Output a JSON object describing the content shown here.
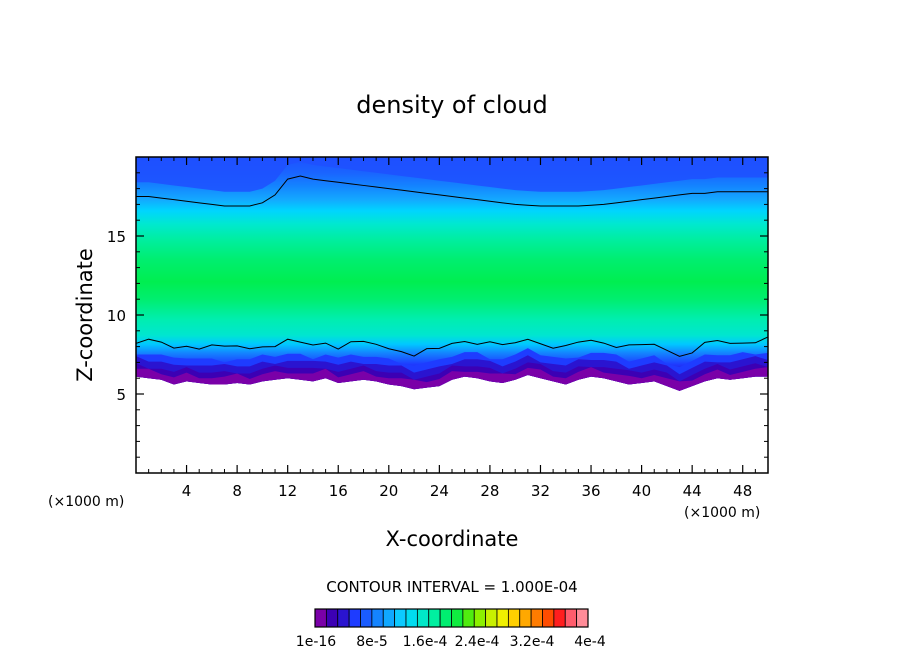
{
  "chart_data": {
    "type": "heatmap",
    "title": "density of cloud",
    "xlabel": "X-coordinate",
    "ylabel": "Z-coordinate",
    "x_unit_label": "(×1000 m)",
    "y_unit_label": "(×1000 m)",
    "xlim": [
      0,
      50
    ],
    "ylim": [
      0,
      20
    ],
    "x_ticks": [
      4,
      8,
      12,
      16,
      20,
      24,
      28,
      32,
      36,
      40,
      44,
      48
    ],
    "y_ticks": [
      5,
      10,
      15
    ],
    "contour_interval_text": "CONTOUR INTERVAL = 1.000E-04",
    "colorbar": {
      "labels": [
        "1e-16",
        "8e-5",
        "1.6e-4",
        "2.4e-4",
        "3.2e-4",
        "4e-4"
      ],
      "colors": [
        "#7a00a8",
        "#3c00b4",
        "#2a14d0",
        "#1e3cff",
        "#1a5cff",
        "#1484ff",
        "#10a8ff",
        "#0ccaff",
        "#00dcf0",
        "#00e8c8",
        "#00f0a0",
        "#00ee70",
        "#10ec40",
        "#50ec10",
        "#8cf000",
        "#c8f000",
        "#f0f000",
        "#ffd000",
        "#ffa800",
        "#ff7c00",
        "#ff4c00",
        "#ff1e1e",
        "#ff5c6c",
        "#ff8c98"
      ]
    },
    "cloud_base_km": [
      6.1,
      6.0,
      5.9,
      5.6,
      5.8,
      5.7,
      5.6,
      5.6,
      5.7,
      5.6,
      5.8,
      5.9,
      6.0,
      5.9,
      5.8,
      6.0,
      5.7,
      5.8,
      5.9,
      5.8,
      5.6,
      5.5,
      5.3,
      5.4,
      5.5,
      5.9,
      6.1,
      6.0,
      5.8,
      5.7,
      5.9,
      6.2,
      6.0,
      5.8,
      5.6,
      5.9,
      6.1,
      6.0,
      5.8,
      5.6,
      5.7,
      5.8,
      5.5,
      5.2,
      5.5,
      5.8,
      6.0,
      5.9,
      6.0,
      6.1,
      6.1
    ],
    "upper_contour_km": [
      17.5,
      17.5,
      17.4,
      17.3,
      17.2,
      17.1,
      17.0,
      16.9,
      16.9,
      16.9,
      17.1,
      17.6,
      18.6,
      18.8,
      18.6,
      18.5,
      18.4,
      18.3,
      18.2,
      18.1,
      18.0,
      17.9,
      17.8,
      17.7,
      17.6,
      17.5,
      17.4,
      17.3,
      17.2,
      17.1,
      17.0,
      16.95,
      16.9,
      16.9,
      16.9,
      16.9,
      16.95,
      17.0,
      17.1,
      17.2,
      17.3,
      17.4,
      17.5,
      17.6,
      17.7,
      17.7,
      17.8,
      17.8,
      17.8,
      17.8,
      17.8
    ]
  }
}
